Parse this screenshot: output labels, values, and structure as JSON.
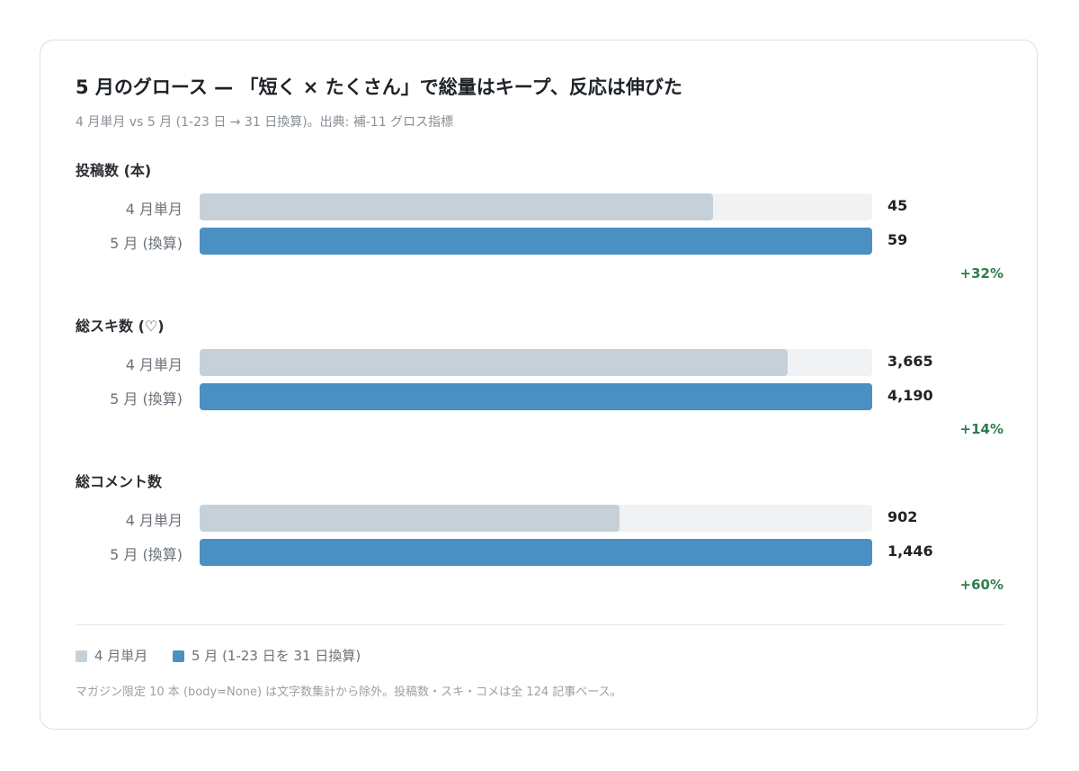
{
  "title": "5 月のグロース — 「短く × たくさん」で総量はキープ、反応は伸びた",
  "subtitle": "4 月単月 vs 5 月 (1-23 日 → 31 日換算)。出典: 補-11 グロス指標",
  "colors": {
    "april": "#c6d0d9",
    "may": "#4a90c2",
    "track": "#f1f2f4",
    "change": "#2e7d4f"
  },
  "chart_data": {
    "type": "bar",
    "orientation": "horizontal",
    "categories": [
      "4 月単月",
      "5 月 (換算)"
    ],
    "scale": "each metric scaled to its own maximum",
    "metrics": [
      {
        "title": "投稿数 (本)",
        "rows": [
          {
            "label": "4 月単月",
            "value": 45,
            "display": "45"
          },
          {
            "label": "5 月 (換算)",
            "value": 59,
            "display": "59"
          }
        ],
        "change": "+32%"
      },
      {
        "title": "総スキ数 (♡)",
        "rows": [
          {
            "label": "4 月単月",
            "value": 3665,
            "display": "3,665"
          },
          {
            "label": "5 月 (換算)",
            "value": 4190,
            "display": "4,190"
          }
        ],
        "change": "+14%"
      },
      {
        "title": "総コメント数",
        "rows": [
          {
            "label": "4 月単月",
            "value": 902,
            "display": "902"
          },
          {
            "label": "5 月 (換算)",
            "value": 1446,
            "display": "1,446"
          }
        ],
        "change": "+60%"
      }
    ]
  },
  "legend": [
    {
      "label": "4 月単月",
      "color": "#c6d0d9"
    },
    {
      "label": "5 月 (1-23 日を 31 日換算)",
      "color": "#4a90c2"
    }
  ],
  "footnote": "マガジン限定 10 本 (body=None) は文字数集計から除外。投稿数・スキ・コメは全 124 記事ベース。"
}
